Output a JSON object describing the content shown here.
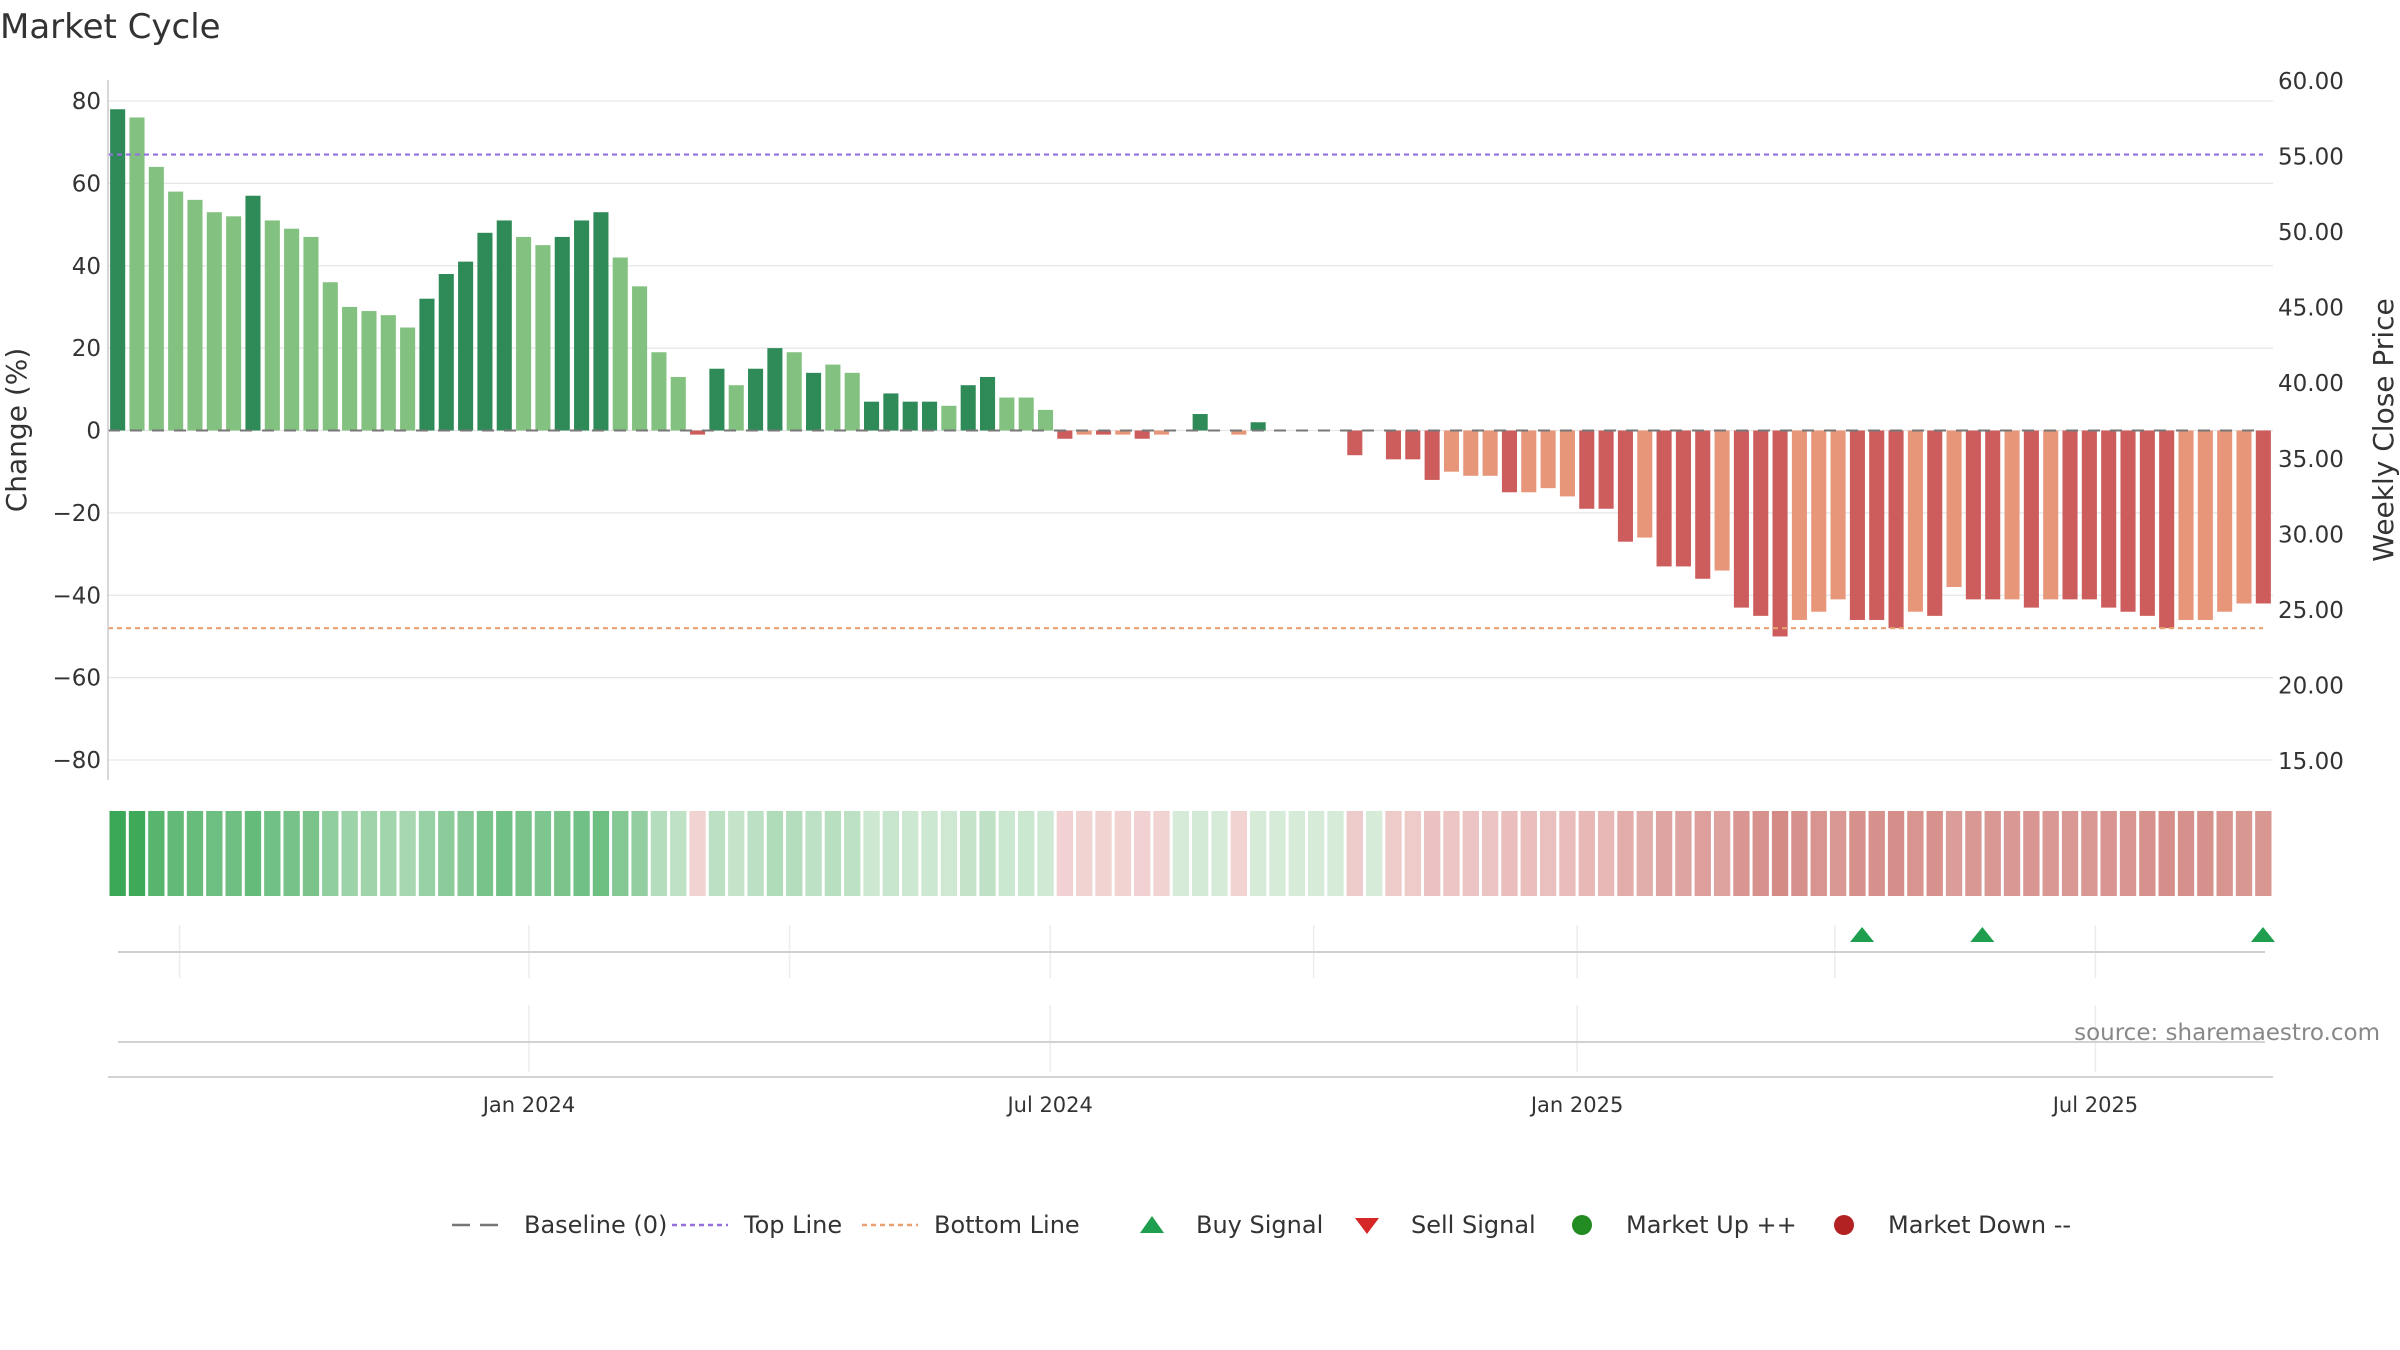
{
  "chart_data": {
    "type": "bar",
    "title": "Market Cycle",
    "ylabel": "Change (%)",
    "y2label": "Weekly Close Price",
    "ylim": [
      -80,
      80
    ],
    "y2lim": [
      15,
      60
    ],
    "yticks": [
      "80",
      "60",
      "40",
      "20",
      "0",
      "−20",
      "−40",
      "−60",
      "−80"
    ],
    "y2ticks": [
      "60.00",
      "55.00",
      "50.00",
      "45.00",
      "40.00",
      "35.00",
      "30.00",
      "25.00",
      "20.00",
      "15.00"
    ],
    "top_line": 67,
    "bottom_line": -48,
    "x_range": [
      "2023-08-07",
      "2025-09-01"
    ],
    "date_ticks": [
      {
        "date": "2024-01-01",
        "label": "Jan 2024"
      },
      {
        "date": "2024-07-01",
        "label": "Jul 2024"
      },
      {
        "date": "2025-01-01",
        "label": "Jan 2025"
      },
      {
        "date": "2025-07-01",
        "label": "Jul 2025"
      }
    ],
    "weeks": {
      "start": "2023-08-07",
      "step_days": 7,
      "values": [
        78,
        76,
        64,
        58,
        56,
        53,
        52,
        57,
        51,
        49,
        47,
        36,
        30,
        29,
        28,
        25,
        32,
        38,
        41,
        48,
        51,
        47,
        45,
        47,
        51,
        53,
        42,
        35,
        19,
        13,
        -1,
        15,
        11,
        15,
        20,
        19,
        14,
        16,
        14,
        7,
        9,
        7,
        7,
        6,
        11,
        13,
        8,
        8,
        5,
        -2,
        -1,
        -1,
        -1,
        -2,
        -1,
        0,
        4,
        0,
        -1,
        2,
        0,
        0,
        0,
        0,
        -6,
        0,
        -7,
        -7,
        -12,
        -10,
        -11,
        -11,
        -15,
        -15,
        -14,
        -16,
        -19,
        -19,
        -27,
        -26,
        -33,
        -33,
        -36,
        -34,
        -43,
        -45,
        -50,
        -46,
        -44,
        -41,
        -46,
        -46,
        -48,
        -44,
        -45,
        -38,
        -41,
        -41,
        -41,
        -43,
        -41,
        -41,
        -41,
        -43,
        -44,
        -45,
        -48,
        -46,
        -46,
        -44,
        -42,
        -42
      ],
      "strong": [
        1,
        0,
        0,
        0,
        0,
        0,
        0,
        1,
        0,
        0,
        0,
        0,
        0,
        0,
        0,
        0,
        1,
        1,
        1,
        1,
        1,
        0,
        0,
        1,
        1,
        1,
        0,
        0,
        0,
        0,
        1,
        1,
        0,
        1,
        1,
        0,
        1,
        0,
        0,
        1,
        1,
        1,
        1,
        0,
        1,
        1,
        0,
        0,
        0,
        1,
        0,
        1,
        0,
        1,
        0,
        0,
        1,
        1,
        0,
        1,
        0,
        0,
        0,
        0,
        1,
        0,
        1,
        1,
        1,
        0,
        0,
        0,
        1,
        0,
        0,
        0,
        1,
        1,
        1,
        0,
        1,
        1,
        1,
        0,
        1,
        1,
        1,
        0,
        0,
        0,
        1,
        1,
        1,
        0,
        1,
        0,
        1,
        1,
        0,
        1,
        0,
        1,
        1,
        1,
        1,
        1,
        1,
        0,
        0,
        0,
        0,
        1
      ]
    },
    "buy_signals": [
      "2025-04-07",
      "2025-05-19",
      "2025-08-25"
    ],
    "sell_signals": [],
    "legend": [
      {
        "label": "Baseline (0)",
        "icon": "dashed-line",
        "color": "#777777"
      },
      {
        "label": "Top Line",
        "icon": "dotted-line",
        "color": "#9370DB"
      },
      {
        "label": "Bottom Line",
        "icon": "dotted-line",
        "color": "#E8A070"
      },
      {
        "label": "Buy Signal",
        "icon": "triangle-up",
        "color": "#1E9E4E"
      },
      {
        "label": "Sell Signal",
        "icon": "triangle-down",
        "color": "#D62728"
      },
      {
        "label": "Market Up ++",
        "icon": "circle",
        "color": "#228B22"
      },
      {
        "label": "Market Down --",
        "icon": "circle",
        "color": "#B22222"
      }
    ],
    "source": "source: sharemaestro.com",
    "colors": {
      "up_strong": "#2E8B57",
      "up_weak": "#82C17F",
      "down_strong": "#CD5C5C",
      "down_weak": "#E8967A",
      "top_line": "#9370DB",
      "bottom_line": "#E8A070",
      "buy": "#1E9E4E",
      "grid": "#e6e6e6"
    }
  }
}
